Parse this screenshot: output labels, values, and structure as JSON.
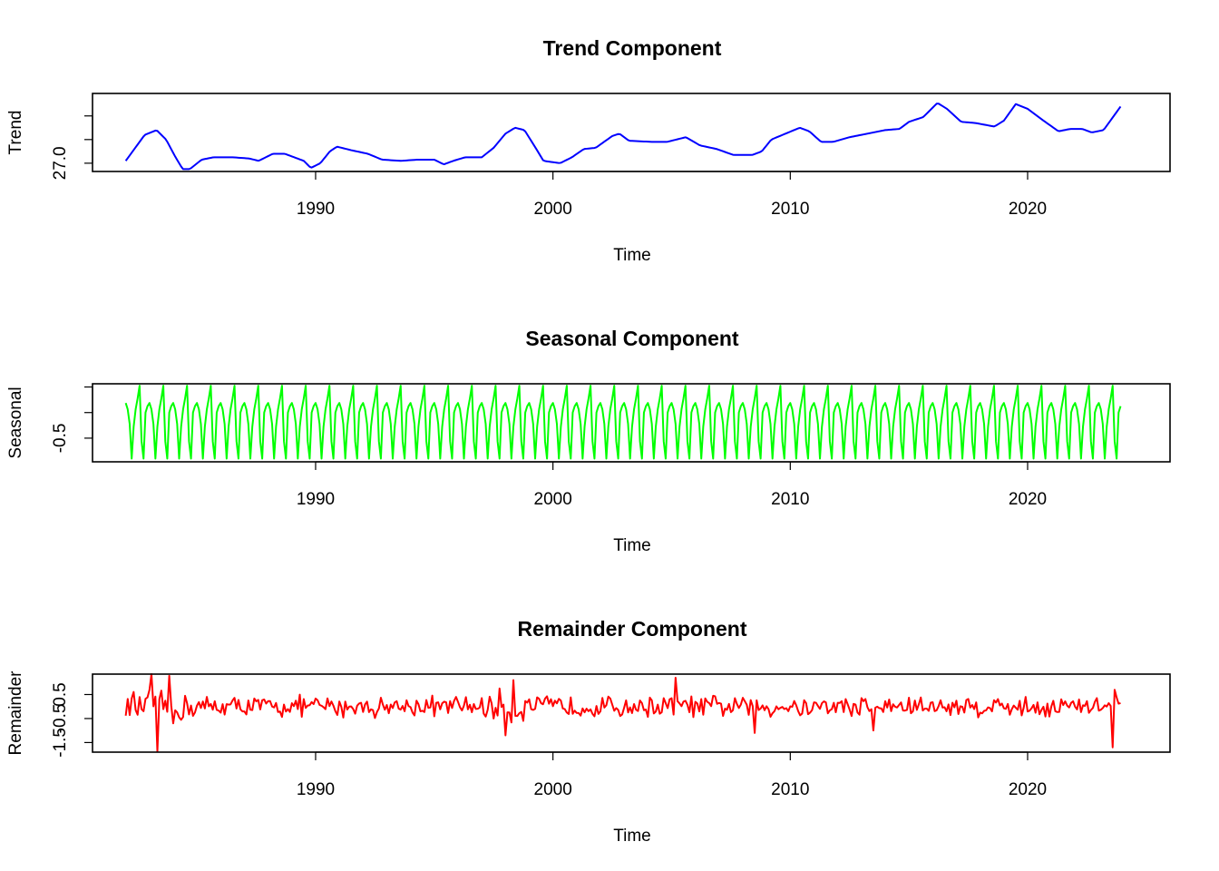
{
  "chart_data": [
    {
      "type": "line",
      "title": "Trend Component",
      "xlabel": "Time",
      "ylabel": "Trend",
      "color": "#0000ff",
      "xlim": [
        1980.6,
        2026.0
      ],
      "ylim": [
        26.93,
        27.59
      ],
      "x_ticks": [
        1990,
        2000,
        2010,
        2020
      ],
      "x_tick_labels": [
        "1990",
        "2000",
        "2010",
        "2020"
      ],
      "y_ticks": [
        27.0,
        27.2,
        27.4
      ],
      "y_tick_labels": [
        "27.0",
        "",
        ""
      ],
      "start": 1982.0,
      "end": 2023.92,
      "frequency": 12,
      "knots": [
        [
          1982.0,
          27.02
        ],
        [
          1982.4,
          27.13
        ],
        [
          1982.8,
          27.24
        ],
        [
          1983.3,
          27.28
        ],
        [
          1983.7,
          27.2
        ],
        [
          1984.1,
          27.05
        ],
        [
          1984.4,
          26.95
        ],
        [
          1984.7,
          26.95
        ],
        [
          1985.2,
          27.03
        ],
        [
          1985.7,
          27.05
        ],
        [
          1986.5,
          27.05
        ],
        [
          1987.2,
          27.04
        ],
        [
          1987.6,
          27.02
        ],
        [
          1988.2,
          27.08
        ],
        [
          1988.7,
          27.08
        ],
        [
          1989.5,
          27.02
        ],
        [
          1989.8,
          26.96
        ],
        [
          1990.2,
          27.0
        ],
        [
          1990.6,
          27.1
        ],
        [
          1990.9,
          27.14
        ],
        [
          1991.5,
          27.11
        ],
        [
          1992.2,
          27.08
        ],
        [
          1992.8,
          27.03
        ],
        [
          1993.6,
          27.02
        ],
        [
          1994.3,
          27.03
        ],
        [
          1995.0,
          27.03
        ],
        [
          1995.4,
          26.99
        ],
        [
          1995.8,
          27.02
        ],
        [
          1996.3,
          27.05
        ],
        [
          1997.0,
          27.05
        ],
        [
          1997.5,
          27.13
        ],
        [
          1998.0,
          27.25
        ],
        [
          1998.4,
          27.3
        ],
        [
          1998.8,
          27.28
        ],
        [
          1999.3,
          27.12
        ],
        [
          1999.6,
          27.02
        ],
        [
          2000.3,
          27.0
        ],
        [
          2000.8,
          27.05
        ],
        [
          2001.3,
          27.12
        ],
        [
          2001.8,
          27.13
        ],
        [
          2002.5,
          27.23
        ],
        [
          2002.8,
          27.25
        ],
        [
          2003.2,
          27.19
        ],
        [
          2004.2,
          27.18
        ],
        [
          2004.8,
          27.18
        ],
        [
          2005.6,
          27.22
        ],
        [
          2006.2,
          27.15
        ],
        [
          2006.9,
          27.12
        ],
        [
          2007.6,
          27.07
        ],
        [
          2008.4,
          27.07
        ],
        [
          2008.8,
          27.1
        ],
        [
          2009.2,
          27.2
        ],
        [
          2009.8,
          27.25
        ],
        [
          2010.4,
          27.3
        ],
        [
          2010.8,
          27.27
        ],
        [
          2011.3,
          27.18
        ],
        [
          2011.8,
          27.18
        ],
        [
          2012.5,
          27.22
        ],
        [
          2013.0,
          27.24
        ],
        [
          2013.5,
          27.26
        ],
        [
          2014.0,
          27.28
        ],
        [
          2014.6,
          27.29
        ],
        [
          2015.0,
          27.35
        ],
        [
          2015.6,
          27.39
        ],
        [
          2016.2,
          27.51
        ],
        [
          2016.6,
          27.46
        ],
        [
          2017.2,
          27.35
        ],
        [
          2017.8,
          27.34
        ],
        [
          2018.6,
          27.31
        ],
        [
          2019.0,
          27.36
        ],
        [
          2019.5,
          27.5
        ],
        [
          2020.0,
          27.46
        ],
        [
          2020.6,
          27.37
        ],
        [
          2021.3,
          27.27
        ],
        [
          2021.8,
          27.29
        ],
        [
          2022.3,
          27.29
        ],
        [
          2022.7,
          27.26
        ],
        [
          2023.2,
          27.28
        ],
        [
          2023.92,
          27.48
        ]
      ]
    },
    {
      "type": "line",
      "title": "Seasonal Component",
      "xlabel": "Time",
      "ylabel": "Seasonal",
      "color": "#00ff00",
      "xlim": [
        1980.6,
        2026.0
      ],
      "ylim": [
        -0.87,
        0.35
      ],
      "x_ticks": [
        1990,
        2000,
        2010,
        2020
      ],
      "x_tick_labels": [
        "1990",
        "2000",
        "2010",
        "2020"
      ],
      "y_ticks": [
        -0.5,
        -0.1,
        0.3
      ],
      "y_tick_labels": [
        "-0.5",
        "",
        ""
      ],
      "start": 1982.0,
      "end": 2023.92,
      "frequency": 12,
      "monthly_pattern": [
        0.05,
        -0.05,
        -0.28,
        -0.82,
        -0.32,
        -0.05,
        0.12,
        0.32,
        -0.55,
        -0.82,
        -0.1,
        0.0
      ]
    },
    {
      "type": "line",
      "title": "Remainder Component",
      "xlabel": "Time",
      "ylabel": "Remainder",
      "color": "#ff0000",
      "xlim": [
        1980.6,
        2026.0
      ],
      "ylim": [
        -1.9,
        1.35
      ],
      "x_ticks": [
        1990,
        2000,
        2010,
        2020
      ],
      "x_tick_labels": [
        "1990",
        "2000",
        "2010",
        "2020"
      ],
      "y_ticks": [
        -1.5,
        -0.5,
        0.5
      ],
      "y_tick_labels": [
        "-1.5",
        "-0.5",
        "0.5"
      ],
      "start": 1982.0,
      "end": 2023.92,
      "frequency": 12,
      "typical_amplitude": 0.35,
      "spikes": [
        [
          1983.1,
          1.35
        ],
        [
          1983.3,
          -1.88
        ],
        [
          1983.8,
          1.28
        ],
        [
          1984.0,
          -0.7
        ],
        [
          1998.0,
          -1.2
        ],
        [
          1998.3,
          1.1
        ],
        [
          2005.2,
          1.2
        ],
        [
          2008.5,
          -1.1
        ],
        [
          2013.5,
          -1.0
        ],
        [
          2023.6,
          -1.7
        ],
        [
          2023.7,
          0.7
        ]
      ]
    }
  ]
}
